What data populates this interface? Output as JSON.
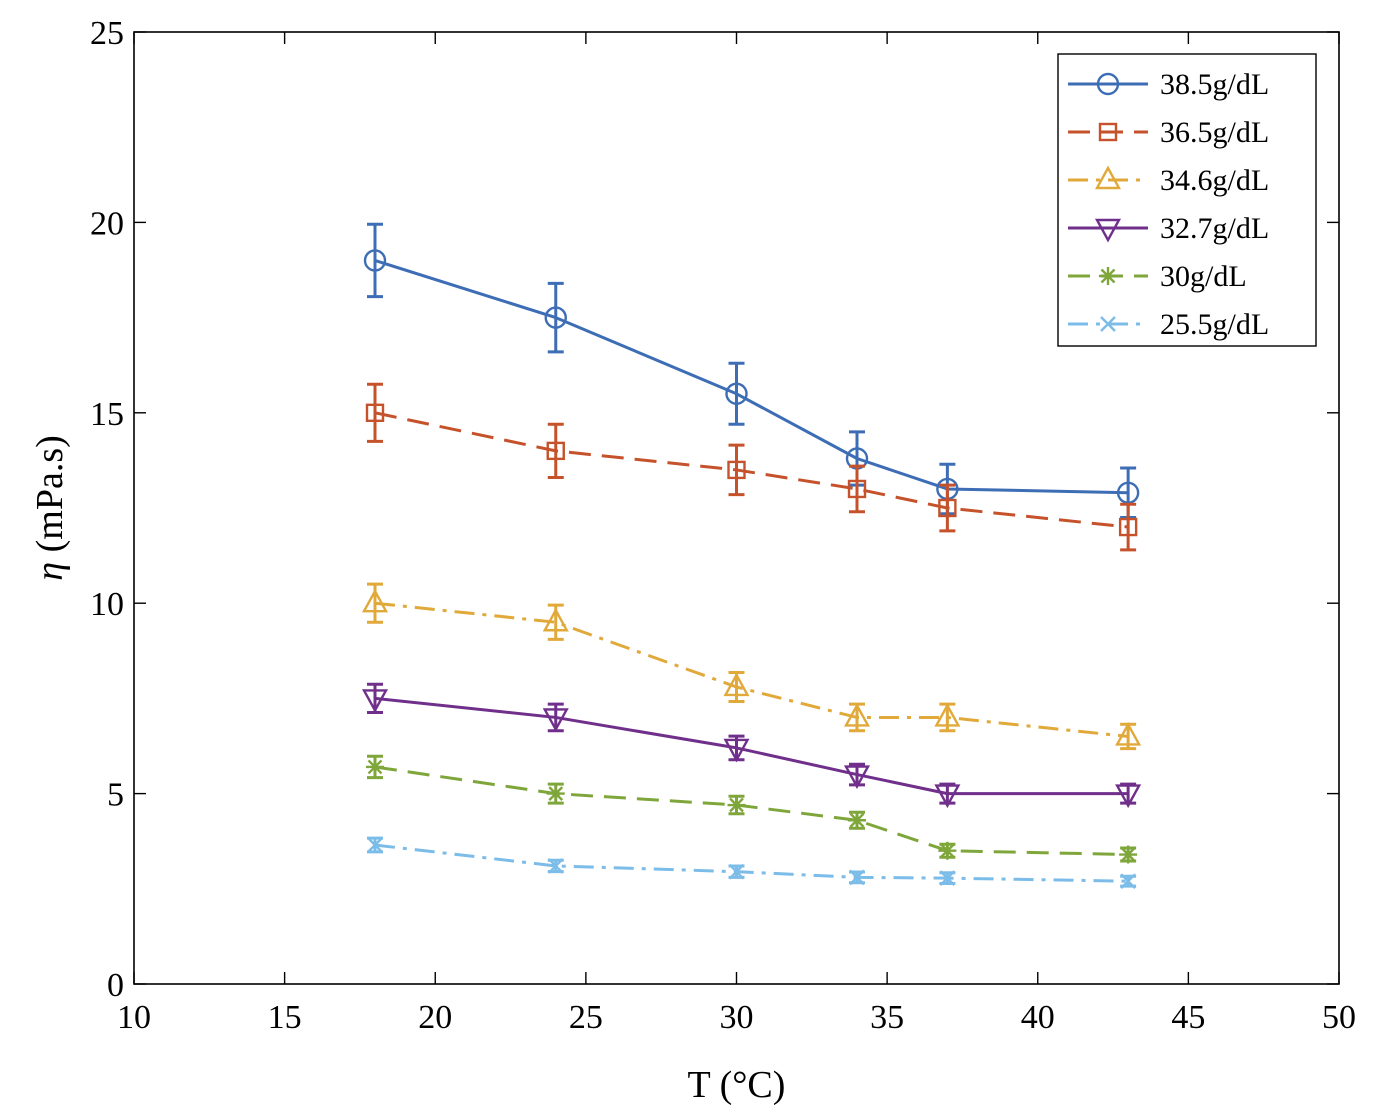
{
  "chart_data": {
    "type": "line",
    "title": "",
    "xlabel": "T (°C)",
    "ylabel_symbol": "η",
    "ylabel_unit": "(mPa.s)",
    "xlim": [
      10,
      50
    ],
    "ylim": [
      0,
      25
    ],
    "xticks": [
      "10",
      "15",
      "20",
      "25",
      "30",
      "35",
      "40",
      "45",
      "50"
    ],
    "yticks": [
      "0",
      "5",
      "10",
      "15",
      "20",
      "25"
    ],
    "grid": false,
    "legend_position": "top-right",
    "x": [
      18,
      24,
      30,
      34,
      37,
      43
    ],
    "series": [
      {
        "name": "38.5g/dL",
        "color": "#3d6db5",
        "marker": "circle",
        "line": "solid",
        "values": [
          19.0,
          17.5,
          15.5,
          13.8,
          13.0,
          12.9
        ],
        "errors": [
          0.95,
          0.9,
          0.8,
          0.7,
          0.65,
          0.65
        ]
      },
      {
        "name": "36.5g/dL",
        "color": "#c5522a",
        "marker": "square",
        "line": "dashed",
        "values": [
          15.0,
          14.0,
          13.5,
          13.0,
          12.5,
          12.0
        ],
        "errors": [
          0.75,
          0.7,
          0.65,
          0.6,
          0.6,
          0.6
        ]
      },
      {
        "name": "34.6g/dL",
        "color": "#e0a93a",
        "marker": "triangle-up",
        "line": "dashdot",
        "values": [
          10.0,
          9.5,
          7.8,
          7.0,
          7.0,
          6.5
        ],
        "errors": [
          0.5,
          0.45,
          0.38,
          0.35,
          0.35,
          0.32
        ]
      },
      {
        "name": "32.7g/dL",
        "color": "#6f2f8a",
        "marker": "triangle-down",
        "line": "solid",
        "values": [
          7.5,
          7.0,
          6.2,
          5.5,
          5.0,
          5.0
        ],
        "errors": [
          0.37,
          0.35,
          0.31,
          0.27,
          0.25,
          0.25
        ]
      },
      {
        "name": "30g/dL",
        "color": "#7fa63a",
        "marker": "asterisk",
        "line": "dashed",
        "values": [
          5.7,
          5.0,
          4.7,
          4.3,
          3.5,
          3.4
        ],
        "errors": [
          0.28,
          0.25,
          0.23,
          0.21,
          0.17,
          0.17
        ]
      },
      {
        "name": "25.5g/dL",
        "color": "#7bbce8",
        "marker": "x",
        "line": "dashdot",
        "values": [
          3.65,
          3.1,
          2.95,
          2.8,
          2.78,
          2.7
        ],
        "errors": [
          0.18,
          0.15,
          0.15,
          0.14,
          0.14,
          0.13
        ]
      }
    ]
  }
}
